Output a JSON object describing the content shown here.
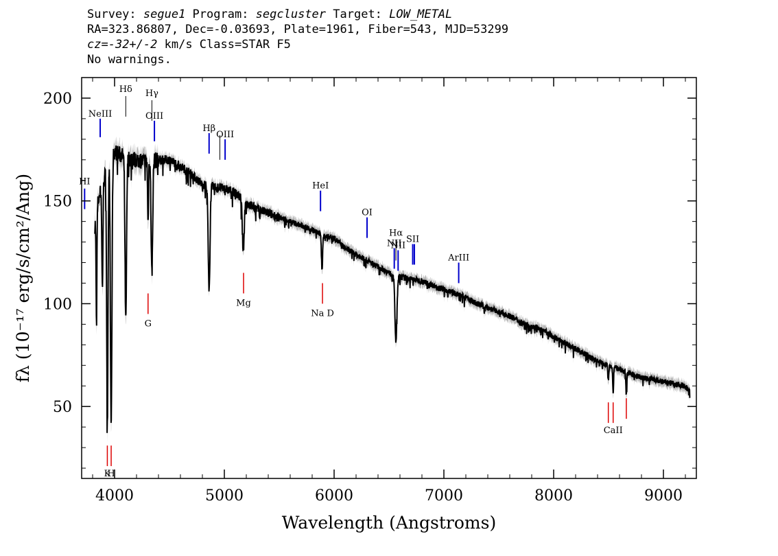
{
  "header": {
    "line1": {
      "survey_label": "Survey: ",
      "survey": "segue1",
      "program_label": " Program: ",
      "program": "segcluster",
      "target_label": " Target: ",
      "target": "LOW_METAL"
    },
    "line2": "RA=323.86807, Dec=-0.03693, Plate=1961, Fiber=543, MJD=53299",
    "line3": {
      "cz": "cz",
      "value": "=-32+/-2",
      "rest": " km/s Class=STAR F5"
    },
    "line4": "No warnings."
  },
  "chart_data": {
    "type": "line",
    "xlabel": "Wavelength (Angstroms)",
    "ylabel": "fλ (10⁻¹⁷ erg/s/cm²/Ang)",
    "xlim": [
      3700,
      9300
    ],
    "ylim": [
      15,
      210
    ],
    "x_ticks": [
      4000,
      5000,
      6000,
      7000,
      8000,
      9000
    ],
    "y_ticks": [
      50,
      100,
      150,
      200
    ],
    "colors": {
      "spectrum": "#000000",
      "error_band": "#b4b4b4",
      "emission": "#0000cc",
      "absorption": "#dd0000",
      "marker_thin": "#000000"
    },
    "continuum": [
      [
        3820,
        138
      ],
      [
        3850,
        150
      ],
      [
        3900,
        160
      ],
      [
        3950,
        170
      ],
      [
        4000,
        174
      ],
      [
        4100,
        171
      ],
      [
        4200,
        170
      ],
      [
        4300,
        169
      ],
      [
        4400,
        170
      ],
      [
        4500,
        170
      ],
      [
        4600,
        167
      ],
      [
        4700,
        163
      ],
      [
        4800,
        158
      ],
      [
        4900,
        157
      ],
      [
        5000,
        156
      ],
      [
        5100,
        154
      ],
      [
        5200,
        149
      ],
      [
        5300,
        146
      ],
      [
        5400,
        144
      ],
      [
        5500,
        142
      ],
      [
        5600,
        140
      ],
      [
        5700,
        138
      ],
      [
        5800,
        136
      ],
      [
        5900,
        133
      ],
      [
        6000,
        132
      ],
      [
        6100,
        127
      ],
      [
        6200,
        124
      ],
      [
        6300,
        121
      ],
      [
        6400,
        118
      ],
      [
        6500,
        115
      ],
      [
        6600,
        113
      ],
      [
        6700,
        112
      ],
      [
        6800,
        111
      ],
      [
        6900,
        109
      ],
      [
        7000,
        107
      ],
      [
        7100,
        105
      ],
      [
        7200,
        103
      ],
      [
        7300,
        100
      ],
      [
        7400,
        98
      ],
      [
        7500,
        96
      ],
      [
        7600,
        94
      ],
      [
        7700,
        91
      ],
      [
        7800,
        89
      ],
      [
        7900,
        87
      ],
      [
        8000,
        84
      ],
      [
        8100,
        81
      ],
      [
        8200,
        78
      ],
      [
        8300,
        75
      ],
      [
        8400,
        72
      ],
      [
        8500,
        70
      ],
      [
        8600,
        68
      ],
      [
        8700,
        66
      ],
      [
        8800,
        64
      ],
      [
        8900,
        63
      ],
      [
        9000,
        62
      ],
      [
        9100,
        61
      ],
      [
        9200,
        60
      ],
      [
        9240,
        57
      ]
    ],
    "absorption_features": [
      {
        "center": 3835,
        "depth": 50,
        "width": 4
      },
      {
        "center": 3889,
        "depth": 50,
        "width": 5
      },
      {
        "center": 3934,
        "depth": 125,
        "width": 6
      },
      {
        "center": 3969,
        "depth": 130,
        "width": 7
      },
      {
        "center": 4102,
        "depth": 80,
        "width": 7
      },
      {
        "center": 4305,
        "depth": 30,
        "width": 4
      },
      {
        "center": 4340,
        "depth": 55,
        "width": 7
      },
      {
        "center": 4861,
        "depth": 52,
        "width": 8
      },
      {
        "center": 5172,
        "depth": 25,
        "width": 8
      },
      {
        "center": 5890,
        "depth": 17,
        "width": 5
      },
      {
        "center": 6563,
        "depth": 32,
        "width": 9
      },
      {
        "center": 8498,
        "depth": 8,
        "width": 4
      },
      {
        "center": 8542,
        "depth": 13,
        "width": 4
      },
      {
        "center": 8662,
        "depth": 11,
        "width": 4
      }
    ],
    "emission_lines": [
      {
        "label": "NeIII",
        "wavelength": 3869,
        "y_top": 190,
        "y_bottom": 181,
        "label_y": 191,
        "color": "blue"
      },
      {
        "label": "Hδ",
        "wavelength": 4102,
        "y_top": 201,
        "y_bottom": 191,
        "label_y": 203,
        "color": "black"
      },
      {
        "label": "Hγ",
        "wavelength": 4340,
        "y_top": 199,
        "y_bottom": 189,
        "label_y": 201,
        "color": "black"
      },
      {
        "label": "OIII",
        "wavelength": 4363,
        "y_top": 189,
        "y_bottom": 179,
        "label_y": 190,
        "color": "blue"
      },
      {
        "label": "Hβ",
        "wavelength": 4861,
        "y_top": 183,
        "y_bottom": 173,
        "label_y": 184,
        "color": "blue"
      },
      {
        "label": "",
        "wavelength": 4959,
        "y_top": 182,
        "y_bottom": 170,
        "label_y": 0,
        "color": "black"
      },
      {
        "label": "OIII",
        "wavelength": 5007,
        "y_top": 180,
        "y_bottom": 170,
        "label_y": 181,
        "color": "blue"
      },
      {
        "label": "HeI",
        "wavelength": 5876,
        "y_top": 155,
        "y_bottom": 145,
        "label_y": 156,
        "color": "blue"
      },
      {
        "label": "OI",
        "wavelength": 6300,
        "y_top": 142,
        "y_bottom": 132,
        "label_y": 143,
        "color": "blue"
      },
      {
        "label": "NII",
        "wavelength": 6548,
        "y_top": 127,
        "y_bottom": 117,
        "label_y": 128,
        "color": "blue"
      },
      {
        "label": "Hα",
        "wavelength": 6563,
        "y_top": 131,
        "y_bottom": 121,
        "label_y": 133,
        "color": "black"
      },
      {
        "label": "NII",
        "wavelength": 6583,
        "y_top": 126,
        "y_bottom": 116,
        "label_y": 127,
        "color": "blue"
      },
      {
        "label": "SII",
        "wavelength": 6716,
        "y_top": 129,
        "y_bottom": 119,
        "label_y": 130,
        "color": "blue"
      },
      {
        "label": "",
        "wavelength": 6731,
        "y_top": 129,
        "y_bottom": 119,
        "label_y": 0,
        "color": "blue"
      },
      {
        "label": "ArIII",
        "wavelength": 7135,
        "y_top": 120,
        "y_bottom": 110,
        "label_y": 121,
        "color": "blue"
      },
      {
        "label": "HI",
        "wavelength": 3727,
        "y_top": 156,
        "y_bottom": 146,
        "label_y": 158,
        "color": "blue"
      }
    ],
    "absorption_lines": [
      {
        "label": "K",
        "wavelength": 3934,
        "y_top": 31,
        "y_bottom": 21,
        "label_y": 16
      },
      {
        "label": "H",
        "wavelength": 3969,
        "y_top": 31,
        "y_bottom": 21,
        "label_y": 16
      },
      {
        "label": "G",
        "wavelength": 4305,
        "y_top": 105,
        "y_bottom": 95,
        "label_y": 89
      },
      {
        "label": "Mg",
        "wavelength": 5175,
        "y_top": 115,
        "y_bottom": 105,
        "label_y": 99
      },
      {
        "label": "Na D",
        "wavelength": 5894,
        "y_top": 110,
        "y_bottom": 100,
        "label_y": 94
      },
      {
        "label": "",
        "wavelength": 8498,
        "y_top": 52,
        "y_bottom": 42,
        "label_y": 0
      },
      {
        "label": "CaII",
        "wavelength": 8542,
        "y_top": 52,
        "y_bottom": 42,
        "label_y": 37
      },
      {
        "label": "",
        "wavelength": 8662,
        "y_top": 54,
        "y_bottom": 44,
        "label_y": 0
      }
    ]
  }
}
